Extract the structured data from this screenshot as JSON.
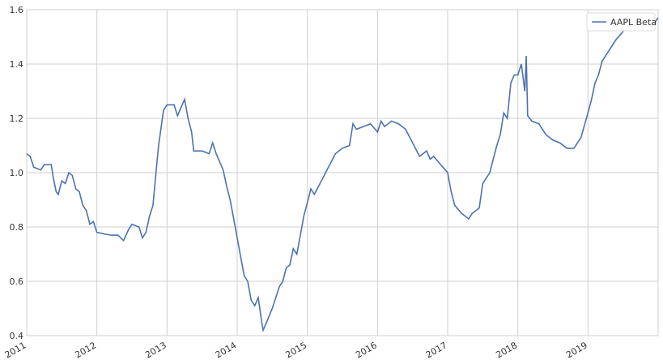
{
  "chart_data": {
    "type": "line",
    "x": [
      2011.0,
      2011.05,
      2011.1,
      2011.2,
      2011.25,
      2011.35,
      2011.38,
      2011.42,
      2011.45,
      2011.5,
      2011.55,
      2011.6,
      2011.65,
      2011.7,
      2011.75,
      2011.8,
      2011.85,
      2011.9,
      2011.95,
      2012.0,
      2012.2,
      2012.3,
      2012.38,
      2012.45,
      2012.5,
      2012.6,
      2012.65,
      2012.7,
      2012.75,
      2012.8,
      2012.85,
      2012.88,
      2012.95,
      2013.0,
      2013.1,
      2013.15,
      2013.25,
      2013.3,
      2013.35,
      2013.38,
      2013.5,
      2013.6,
      2013.65,
      2013.7,
      2013.8,
      2013.85,
      2013.9,
      2013.95,
      2014.0,
      2014.05,
      2014.1,
      2014.15,
      2014.2,
      2014.25,
      2014.3,
      2014.35,
      2014.37,
      2014.42,
      2014.5,
      2014.55,
      2014.6,
      2014.65,
      2014.7,
      2014.75,
      2014.8,
      2014.85,
      2014.9,
      2014.95,
      2015.0,
      2015.05,
      2015.1,
      2015.2,
      2015.3,
      2015.4,
      2015.5,
      2015.6,
      2015.65,
      2015.7,
      2015.8,
      2015.9,
      2016.0,
      2016.05,
      2016.1,
      2016.2,
      2016.3,
      2016.4,
      2016.5,
      2016.6,
      2016.7,
      2016.75,
      2016.8,
      2016.9,
      2017.0,
      2017.05,
      2017.1,
      2017.2,
      2017.3,
      2017.35,
      2017.45,
      2017.5,
      2017.6,
      2017.65,
      2017.7,
      2017.75,
      2017.8,
      2017.85,
      2017.9,
      2017.95,
      2018.0,
      2018.05,
      2018.1,
      2018.12,
      2018.14,
      2018.2,
      2018.3,
      2018.4,
      2018.5,
      2018.6,
      2018.7,
      2018.8,
      2018.9,
      2019.0,
      2019.05,
      2019.1,
      2019.15,
      2019.2,
      2019.3,
      2019.4,
      2019.5,
      2019.6,
      2019.7,
      2019.8,
      2019.9,
      2019.97,
      2020.0
    ],
    "series": [
      {
        "name": "AAPL Beta",
        "color": "#4c72b0",
        "values": [
          1.07,
          1.06,
          1.02,
          1.01,
          1.03,
          1.03,
          0.98,
          0.93,
          0.92,
          0.97,
          0.96,
          1.0,
          0.99,
          0.94,
          0.93,
          0.88,
          0.86,
          0.81,
          0.82,
          0.78,
          0.77,
          0.77,
          0.75,
          0.79,
          0.81,
          0.8,
          0.76,
          0.78,
          0.84,
          0.88,
          1.02,
          1.1,
          1.23,
          1.25,
          1.25,
          1.21,
          1.27,
          1.2,
          1.15,
          1.08,
          1.08,
          1.07,
          1.11,
          1.07,
          1.01,
          0.95,
          0.9,
          0.83,
          0.76,
          0.69,
          0.62,
          0.6,
          0.53,
          0.51,
          0.54,
          0.45,
          0.42,
          0.45,
          0.5,
          0.54,
          0.58,
          0.6,
          0.65,
          0.66,
          0.72,
          0.7,
          0.77,
          0.84,
          0.89,
          0.94,
          0.92,
          0.97,
          1.02,
          1.07,
          1.09,
          1.1,
          1.18,
          1.16,
          1.17,
          1.18,
          1.15,
          1.19,
          1.17,
          1.19,
          1.18,
          1.16,
          1.11,
          1.06,
          1.08,
          1.05,
          1.06,
          1.03,
          1.0,
          0.93,
          0.88,
          0.85,
          0.83,
          0.85,
          0.87,
          0.96,
          1.0,
          1.05,
          1.1,
          1.14,
          1.22,
          1.2,
          1.33,
          1.36,
          1.36,
          1.4,
          1.3,
          1.43,
          1.21,
          1.19,
          1.18,
          1.14,
          1.12,
          1.11,
          1.09,
          1.09,
          1.13,
          1.22,
          1.27,
          1.33,
          1.36,
          1.41,
          1.45,
          1.49,
          1.52,
          1.56,
          1.55,
          1.53,
          1.53,
          1.56,
          1.57
        ]
      }
    ],
    "xlim": [
      2011,
      2020
    ],
    "xticks": [
      2011,
      2012,
      2013,
      2014,
      2015,
      2016,
      2017,
      2018,
      2019
    ],
    "ylim": [
      0.4,
      1.6
    ],
    "yticks": [
      0.4,
      0.6,
      0.8,
      {
        "value": 1,
        "label": "1.0"
      },
      1.2,
      1.4,
      1.6
    ],
    "grid": true,
    "legend": "upper right"
  }
}
